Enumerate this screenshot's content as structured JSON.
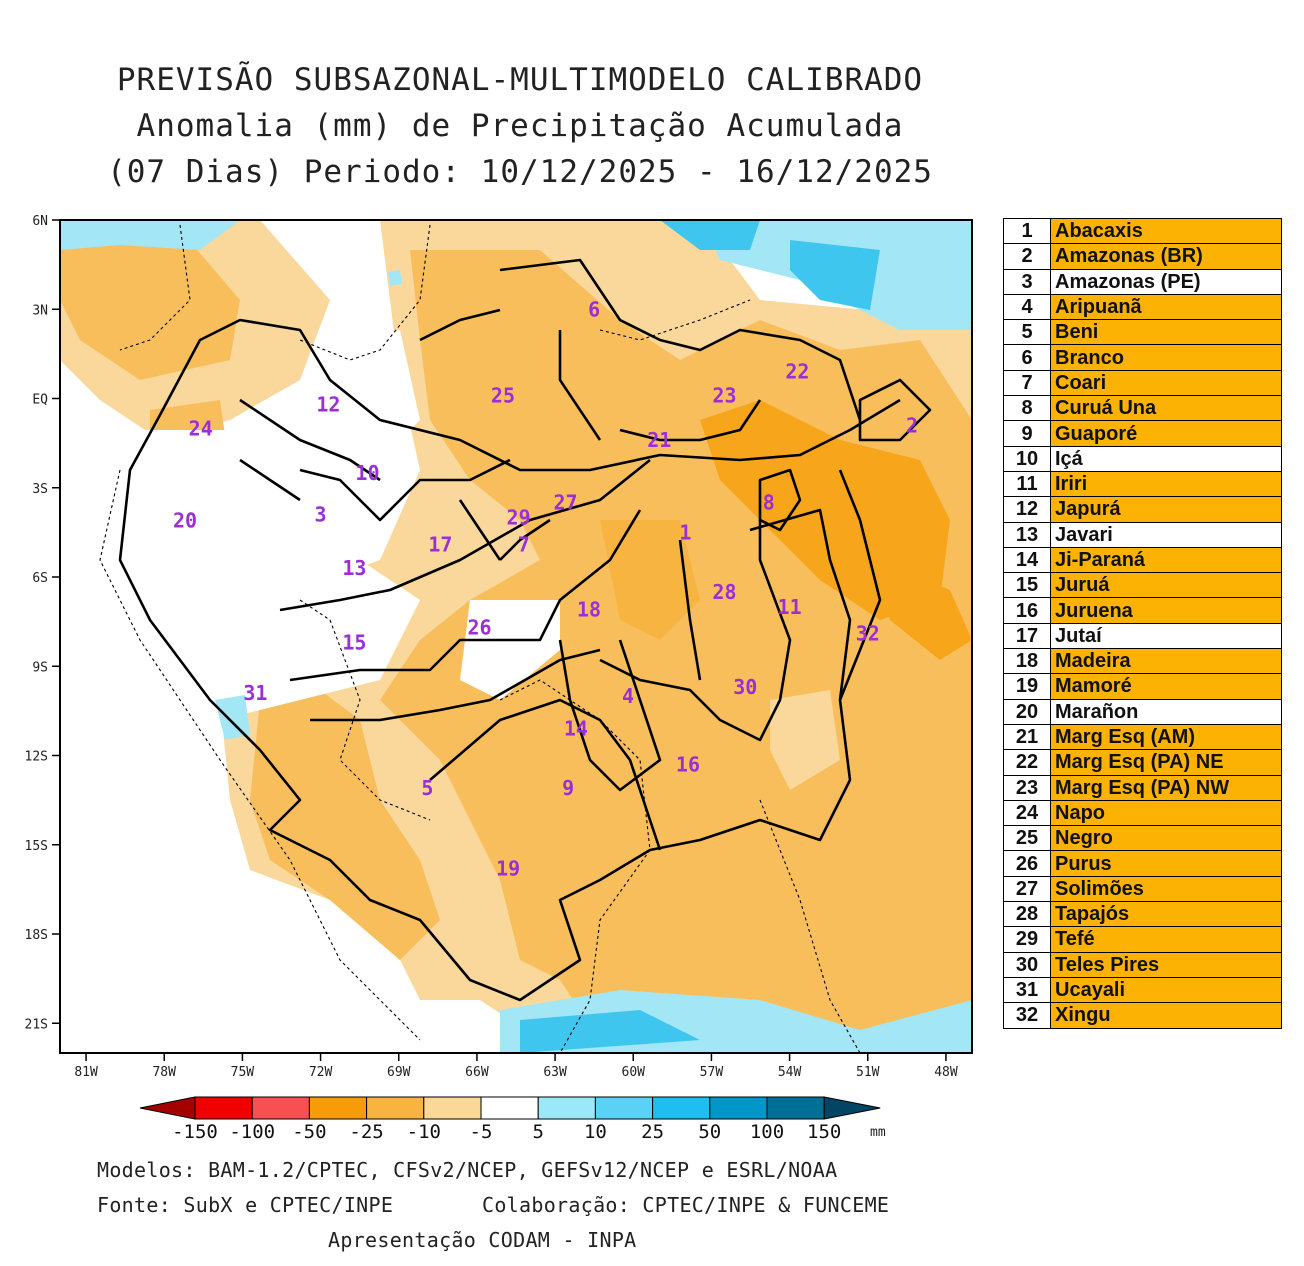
{
  "title": {
    "line1": "PREVISÃO SUBSAZONAL-MULTIMODELO CALIBRADO",
    "line2": "Anomalia (mm) de Precipitação Acumulada",
    "line3": "(07 Dias) Periodo: 10/12/2025 - 16/12/2025"
  },
  "map": {
    "lat_labels": [
      "6N",
      "3N",
      "EQ",
      "3S",
      "6S",
      "9S",
      "12S",
      "15S",
      "18S",
      "21S"
    ],
    "lon_labels": [
      "81W",
      "78W",
      "75W",
      "72W",
      "69W",
      "66W",
      "63W",
      "60W",
      "57W",
      "54W",
      "51W",
      "48W"
    ],
    "basin_numbers": [
      {
        "label": "1",
        "lon": -58.0,
        "lat": -4.5
      },
      {
        "label": "2",
        "lon": -49.3,
        "lat": -0.9
      },
      {
        "label": "3",
        "lon": -72.0,
        "lat": -3.9
      },
      {
        "label": "4",
        "lon": -60.2,
        "lat": -10.0
      },
      {
        "label": "5",
        "lon": -67.9,
        "lat": -13.1
      },
      {
        "label": "6",
        "lon": -61.5,
        "lat": 3.0
      },
      {
        "label": "7",
        "lon": -64.2,
        "lat": -4.9
      },
      {
        "label": "8",
        "lon": -54.8,
        "lat": -3.5
      },
      {
        "label": "9",
        "lon": -62.5,
        "lat": -13.1
      },
      {
        "label": "10",
        "lon": -70.2,
        "lat": -2.5
      },
      {
        "label": "11",
        "lon": -54.0,
        "lat": -7.0
      },
      {
        "label": "12",
        "lon": -71.7,
        "lat": -0.2
      },
      {
        "label": "13",
        "lon": -70.7,
        "lat": -5.7
      },
      {
        "label": "14",
        "lon": -62.2,
        "lat": -11.1
      },
      {
        "label": "15",
        "lon": -70.7,
        "lat": -8.2
      },
      {
        "label": "16",
        "lon": -57.9,
        "lat": -12.3
      },
      {
        "label": "17",
        "lon": -67.4,
        "lat": -4.9
      },
      {
        "label": "18",
        "lon": -61.7,
        "lat": -7.1
      },
      {
        "label": "19",
        "lon": -64.8,
        "lat": -15.8
      },
      {
        "label": "20",
        "lon": -77.2,
        "lat": -4.1
      },
      {
        "label": "21",
        "lon": -59.0,
        "lat": -1.4
      },
      {
        "label": "22",
        "lon": -53.7,
        "lat": 0.9
      },
      {
        "label": "23",
        "lon": -56.5,
        "lat": 0.1
      },
      {
        "label": "24",
        "lon": -76.6,
        "lat": -1.0
      },
      {
        "label": "25",
        "lon": -65.0,
        "lat": 0.1
      },
      {
        "label": "26",
        "lon": -65.9,
        "lat": -7.7
      },
      {
        "label": "27",
        "lon": -62.6,
        "lat": -3.5
      },
      {
        "label": "28",
        "lon": -56.5,
        "lat": -6.5
      },
      {
        "label": "29",
        "lon": -64.4,
        "lat": -4.0
      },
      {
        "label": "30",
        "lon": -55.7,
        "lat": -9.7
      },
      {
        "label": "31",
        "lon": -74.5,
        "lat": -9.9
      },
      {
        "label": "32",
        "lon": -51.0,
        "lat": -7.9
      }
    ]
  },
  "colorbar": {
    "labels": [
      "-150",
      "-100",
      "-50",
      "-25",
      "-10",
      "-5",
      "5",
      "10",
      "25",
      "50",
      "100",
      "150"
    ],
    "unit": "mm",
    "colors": [
      "#a50000",
      "#f00000",
      "#f85050",
      "#f79c08",
      "#f8b440",
      "#fad898",
      "#ffffff",
      "#9be8f8",
      "#5ad2f5",
      "#1ebef0",
      "#0096c8",
      "#006f96",
      "#004664"
    ]
  },
  "anomaly_colors": {
    "dry_strong": "#f7a51a",
    "dry_moderate": "#f8be5c",
    "dry_light": "#fad79b",
    "neutral": "#ffffff",
    "wet_light": "#a3e6f6",
    "wet_moderate": "#3fc6ef"
  },
  "legend": [
    {
      "num": "1",
      "name": "Abacaxis",
      "color": "#fbb202"
    },
    {
      "num": "2",
      "name": "Amazonas (BR)",
      "color": "#fbb202"
    },
    {
      "num": "3",
      "name": "Amazonas (PE)",
      "color": "#ffffff"
    },
    {
      "num": "4",
      "name": "Aripuanã",
      "color": "#fbb202"
    },
    {
      "num": "5",
      "name": "Beni",
      "color": "#fbb202"
    },
    {
      "num": "6",
      "name": "Branco",
      "color": "#fbb202"
    },
    {
      "num": "7",
      "name": "Coari",
      "color": "#fbb202"
    },
    {
      "num": "8",
      "name": "Curuá Una",
      "color": "#fbb202"
    },
    {
      "num": "9",
      "name": "Guaporé",
      "color": "#fbb202"
    },
    {
      "num": "10",
      "name": "Içá",
      "color": "#ffffff"
    },
    {
      "num": "11",
      "name": "Iriri",
      "color": "#fbb202"
    },
    {
      "num": "12",
      "name": "Japurá",
      "color": "#fbb202"
    },
    {
      "num": "13",
      "name": "Javari",
      "color": "#ffffff"
    },
    {
      "num": "14",
      "name": "Ji-Paraná",
      "color": "#fbb202"
    },
    {
      "num": "15",
      "name": "Juruá",
      "color": "#fbb202"
    },
    {
      "num": "16",
      "name": "Juruena",
      "color": "#fbb202"
    },
    {
      "num": "17",
      "name": "Jutaí",
      "color": "#ffffff"
    },
    {
      "num": "18",
      "name": "Madeira",
      "color": "#fbb202"
    },
    {
      "num": "19",
      "name": "Mamoré",
      "color": "#fbb202"
    },
    {
      "num": "20",
      "name": "Marañon",
      "color": "#ffffff"
    },
    {
      "num": "21",
      "name": "Marg Esq (AM)",
      "color": "#fbb202"
    },
    {
      "num": "22",
      "name": "Marg Esq (PA) NE",
      "color": "#fbb202"
    },
    {
      "num": "23",
      "name": "Marg Esq (PA) NW",
      "color": "#fbb202"
    },
    {
      "num": "24",
      "name": "Napo",
      "color": "#fbb202"
    },
    {
      "num": "25",
      "name": "Negro",
      "color": "#fbb202"
    },
    {
      "num": "26",
      "name": "Purus",
      "color": "#fbb202"
    },
    {
      "num": "27",
      "name": "Solimões",
      "color": "#fbb202"
    },
    {
      "num": "28",
      "name": "Tapajós",
      "color": "#fbb202"
    },
    {
      "num": "29",
      "name": "Tefé",
      "color": "#fbb202"
    },
    {
      "num": "30",
      "name": "Teles Pires",
      "color": "#fbb202"
    },
    {
      "num": "31",
      "name": "Ucayali",
      "color": "#fbb202"
    },
    {
      "num": "32",
      "name": "Xingu",
      "color": "#fbb202"
    }
  ],
  "footer": {
    "models": "Modelos: BAM-1.2/CPTEC, CFSv2/NCEP, GEFSv12/NCEP e ESRL/NOAA",
    "source": "Fonte: SubX e CPTEC/INPE",
    "collab": "Colaboração: CPTEC/INPE & FUNCEME",
    "presentation": "Apresentação CODAM - INPA"
  }
}
